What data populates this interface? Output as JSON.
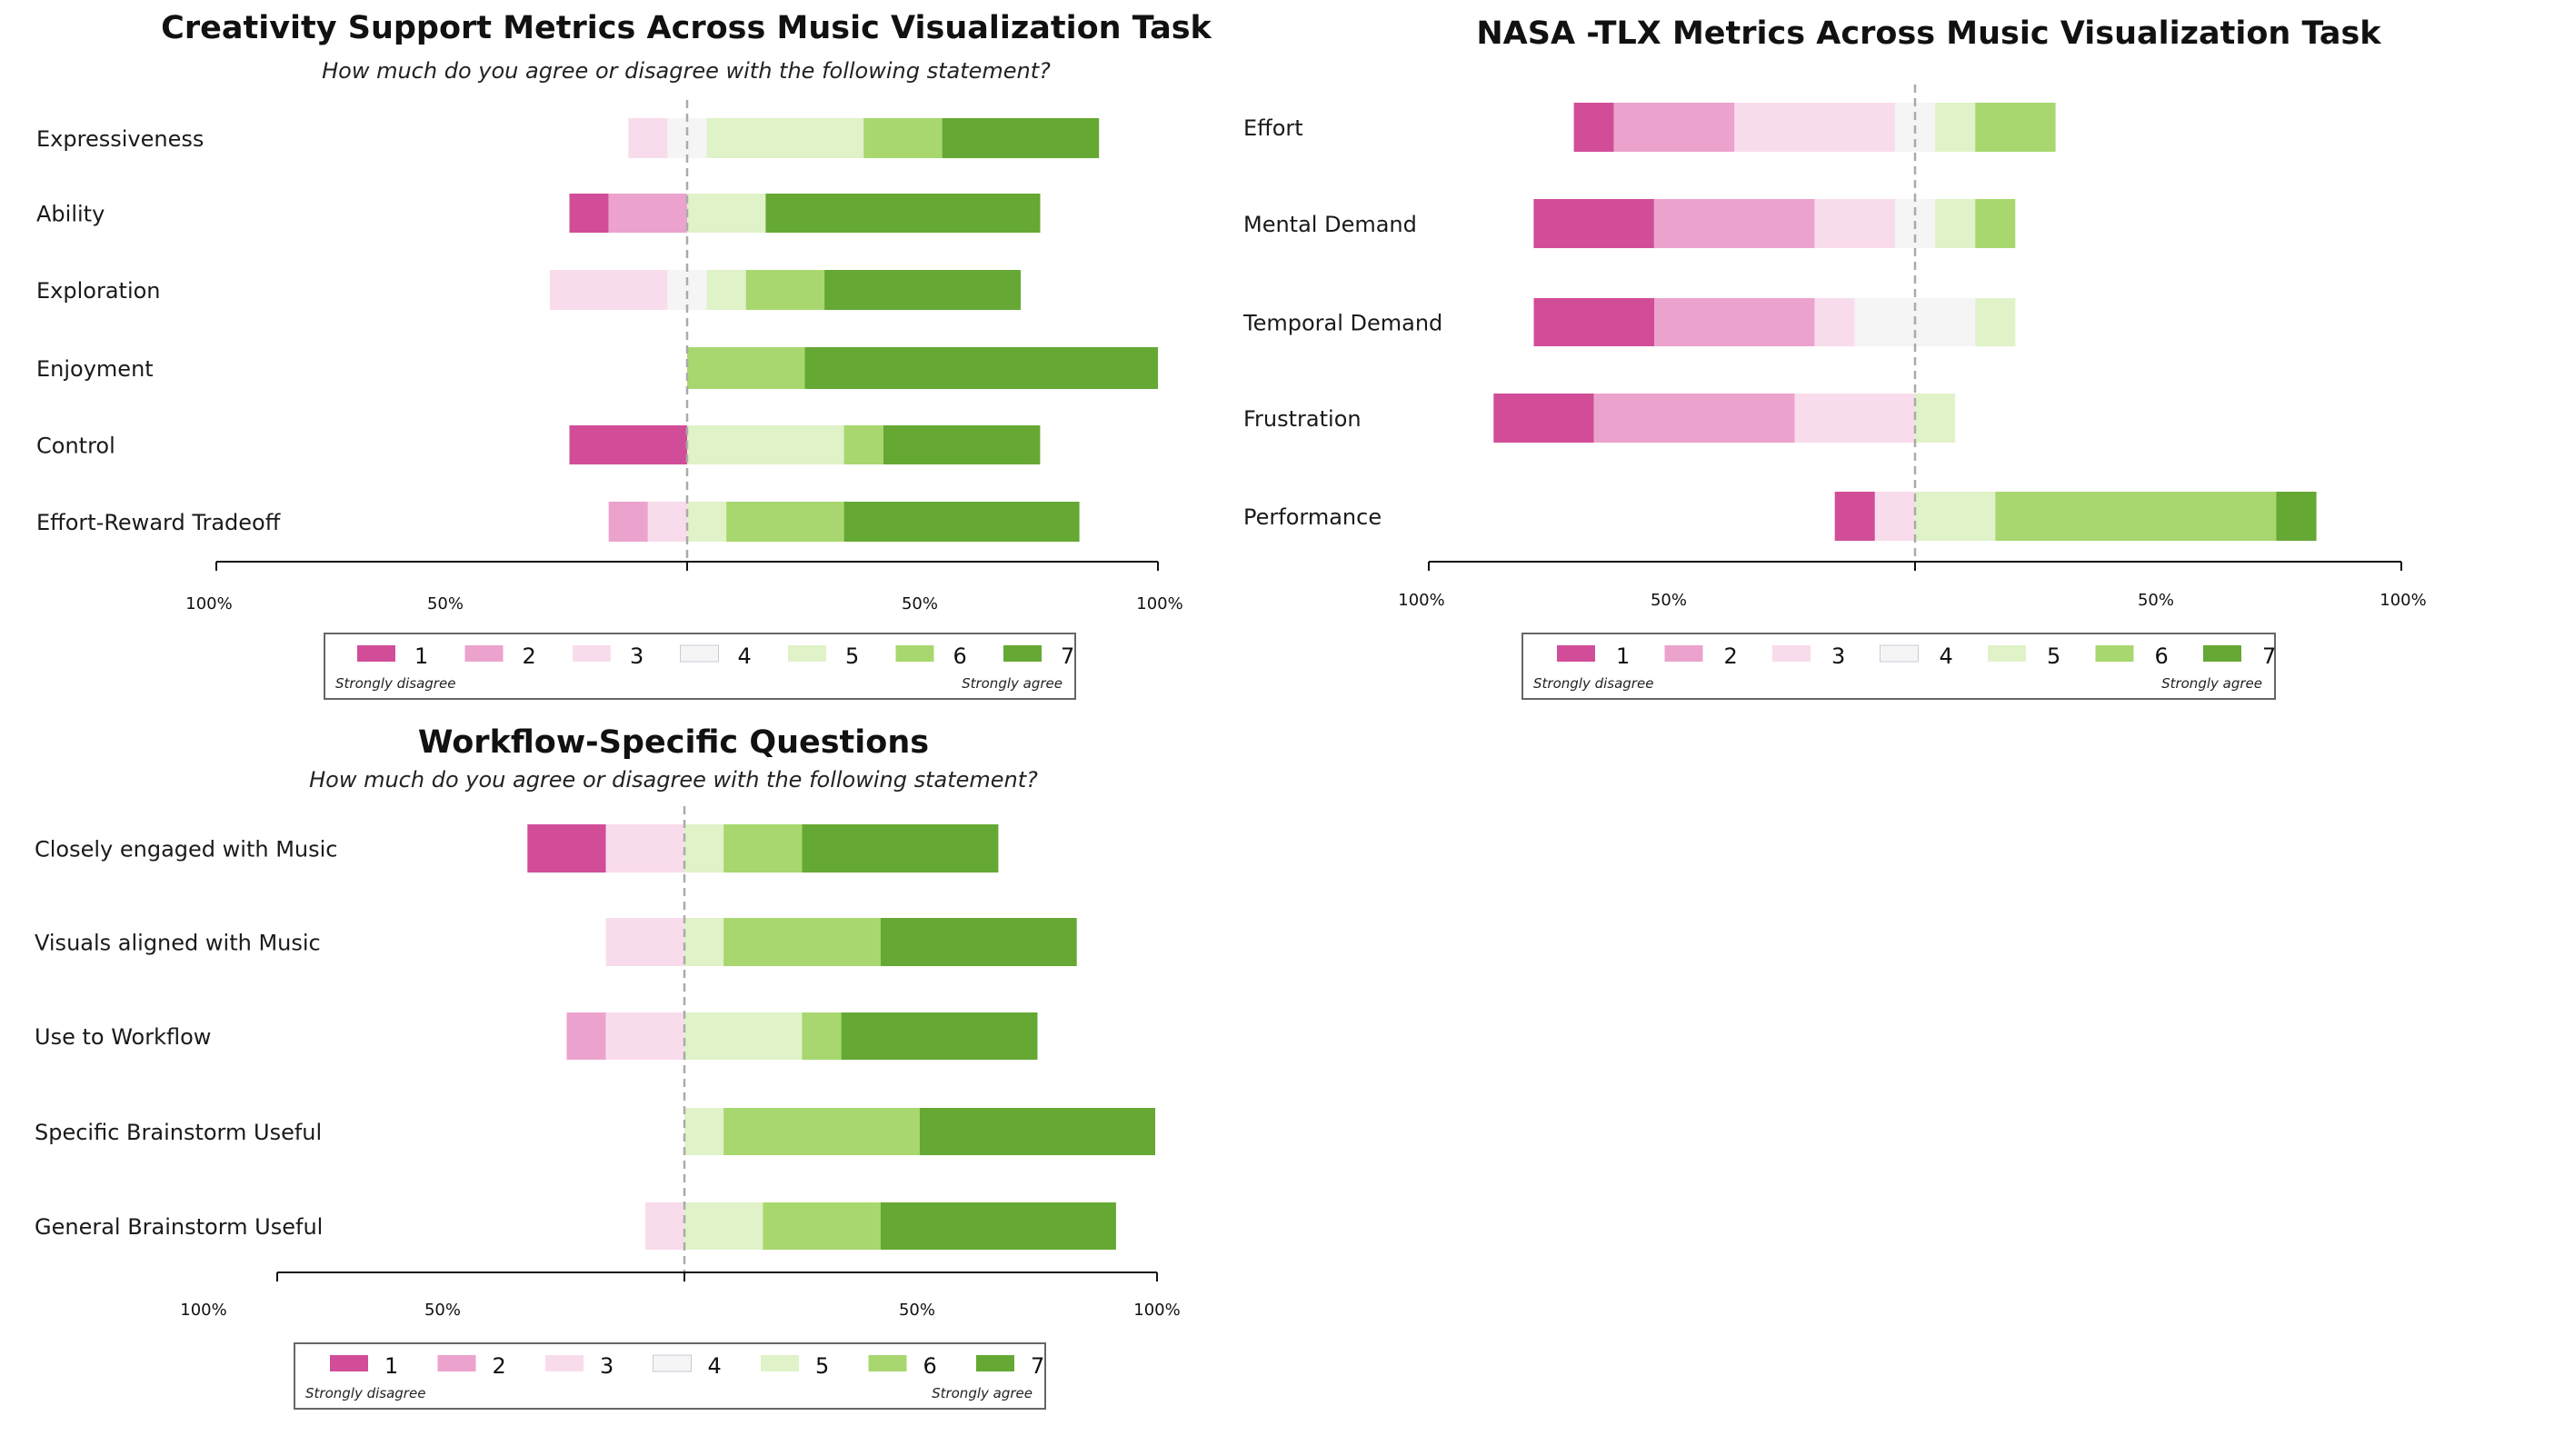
{
  "colors": {
    "1": "#d24d98",
    "2": "#eba3cd",
    "3": "#f9dcec",
    "4": "#f5f5f5",
    "5": "#e0f2c8",
    "6": "#a8d76f",
    "7": "#65a833"
  },
  "chart_data": [
    {
      "type": "bar",
      "subtype": "diverging-stacked-likert",
      "title": "Creativity Support Metrics Across Music Visualization Task",
      "subtitle": "How much do you agree or disagree with the following statement?",
      "categories": [
        "Expressiveness",
        "Ability",
        "Exploration",
        "Enjoyment",
        "Control",
        "Effort-Reward Tradeoff"
      ],
      "series": [
        {
          "name": "1",
          "values": [
            0,
            8.33,
            0,
            0,
            25,
            0
          ]
        },
        {
          "name": "2",
          "values": [
            0,
            16.67,
            0,
            0,
            0,
            8.33
          ]
        },
        {
          "name": "3",
          "values": [
            8.33,
            0,
            25,
            0,
            0,
            8.33
          ]
        },
        {
          "name": "4",
          "values": [
            8.33,
            0,
            8.33,
            0,
            0,
            0
          ]
        },
        {
          "name": "5",
          "values": [
            33.33,
            16.67,
            8.33,
            0,
            33.33,
            8.33
          ]
        },
        {
          "name": "6",
          "values": [
            16.67,
            0,
            16.67,
            25,
            8.33,
            25
          ]
        },
        {
          "name": "7",
          "values": [
            33.33,
            58.33,
            41.67,
            75,
            33.33,
            50
          ]
        }
      ],
      "xlim": [
        -100,
        100
      ],
      "xticks": [
        "100%",
        "50%",
        "",
        "50%",
        "100%"
      ],
      "legend": {
        "items": [
          "1",
          "2",
          "3",
          "4",
          "5",
          "6",
          "7"
        ],
        "left_note": "Strongly disagree",
        "right_note": "Strongly agree",
        "placement": "bottom"
      }
    },
    {
      "type": "bar",
      "subtype": "diverging-stacked-likert",
      "title": "NASA -TLX Metrics Across Music Visualization Task",
      "subtitle": "",
      "categories": [
        "Effort",
        "Mental Demand",
        "Temporal Demand",
        "Frustration",
        "Performance"
      ],
      "series": [
        {
          "name": "1",
          "values": [
            8.33,
            25,
            25,
            20.83,
            8.33
          ]
        },
        {
          "name": "2",
          "values": [
            25,
            33.33,
            33.33,
            41.67,
            0
          ]
        },
        {
          "name": "3",
          "values": [
            33.33,
            16.67,
            8.33,
            25,
            8.33
          ]
        },
        {
          "name": "4",
          "values": [
            8.33,
            8.33,
            25,
            0,
            0
          ]
        },
        {
          "name": "5",
          "values": [
            8.33,
            8.33,
            8.33,
            8.33,
            16.67
          ]
        },
        {
          "name": "6",
          "values": [
            16.67,
            8.33,
            0,
            0,
            58.33
          ]
        },
        {
          "name": "7",
          "values": [
            0,
            0,
            0,
            0,
            8.33
          ]
        }
      ],
      "xlim": [
        -100,
        100
      ],
      "xticks": [
        "100%",
        "50%",
        "",
        "50%",
        "100%"
      ],
      "legend": {
        "items": [
          "1",
          "2",
          "3",
          "4",
          "5",
          "6",
          "7"
        ],
        "left_note": "Strongly disagree",
        "right_note": "Strongly agree",
        "placement": "bottom"
      }
    },
    {
      "type": "bar",
      "subtype": "diverging-stacked-likert",
      "title": "Workflow-Specific Questions",
      "subtitle": "How much do you agree or disagree with the following statement?",
      "categories": [
        "Closely engaged with Music",
        "Visuals aligned with Music",
        "Use to Workflow",
        "Specific Brainstorm Useful",
        "General Brainstorm Useful"
      ],
      "series": [
        {
          "name": "1",
          "values": [
            16.67,
            0,
            0,
            0,
            0
          ]
        },
        {
          "name": "2",
          "values": [
            0,
            0,
            8.33,
            0,
            0
          ]
        },
        {
          "name": "3",
          "values": [
            16.67,
            16.67,
            16.67,
            0,
            8.33
          ]
        },
        {
          "name": "4",
          "values": [
            0,
            0,
            0,
            0,
            0
          ]
        },
        {
          "name": "5",
          "values": [
            8.33,
            8.33,
            25,
            8.33,
            16.67
          ]
        },
        {
          "name": "6",
          "values": [
            16.67,
            33.33,
            8.33,
            41.67,
            25
          ]
        },
        {
          "name": "7",
          "values": [
            41.67,
            41.67,
            41.67,
            50,
            50
          ]
        }
      ],
      "xlim": [
        -100,
        100
      ],
      "xticks": [
        "100%",
        "50%",
        "",
        "50%",
        "100%"
      ],
      "legend": {
        "items": [
          "1",
          "2",
          "3",
          "4",
          "5",
          "6",
          "7"
        ],
        "left_note": "Strongly disagree",
        "right_note": "Strongly agree",
        "placement": "bottom"
      }
    }
  ]
}
